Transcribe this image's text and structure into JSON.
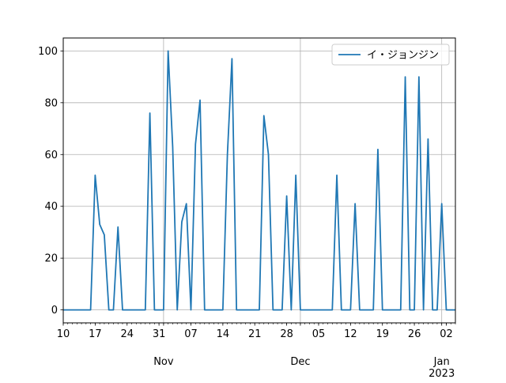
{
  "chart_data": {
    "type": "line",
    "x_start": "2022-10-10",
    "x_end": "2023-01-04",
    "ylim": [
      -5,
      105
    ],
    "y_ticks": [
      0,
      20,
      40,
      60,
      80,
      100
    ],
    "grid": true,
    "legend_position": "top-right",
    "x_ticks": [
      {
        "date": "2022-10-10",
        "label": "10"
      },
      {
        "date": "2022-10-17",
        "label": "17"
      },
      {
        "date": "2022-10-24",
        "label": "24"
      },
      {
        "date": "2022-10-31",
        "label": "31"
      },
      {
        "date": "2022-11-07",
        "label": "07"
      },
      {
        "date": "2022-11-14",
        "label": "14"
      },
      {
        "date": "2022-11-21",
        "label": "21"
      },
      {
        "date": "2022-11-28",
        "label": "28"
      },
      {
        "date": "2022-12-05",
        "label": "05"
      },
      {
        "date": "2022-12-12",
        "label": "12"
      },
      {
        "date": "2022-12-19",
        "label": "19"
      },
      {
        "date": "2022-12-26",
        "label": "26"
      },
      {
        "date": "2023-01-02",
        "label": "02"
      }
    ],
    "month_labels": [
      {
        "date": "2022-11-01",
        "label": "Nov"
      },
      {
        "date": "2022-12-01",
        "label": "Dec"
      },
      {
        "date": "2023-01-01",
        "label": "Jan",
        "sublabel": "2023"
      }
    ],
    "series": [
      {
        "name": "イ・ジョンジン",
        "color": "#1f77b4",
        "points": [
          [
            "2022-10-10",
            0
          ],
          [
            "2022-10-16",
            0
          ],
          [
            "2022-10-17",
            52
          ],
          [
            "2022-10-18",
            33
          ],
          [
            "2022-10-19",
            29
          ],
          [
            "2022-10-20",
            0
          ],
          [
            "2022-10-21",
            0
          ],
          [
            "2022-10-22",
            32
          ],
          [
            "2022-10-23",
            0
          ],
          [
            "2022-10-28",
            0
          ],
          [
            "2022-10-29",
            76
          ],
          [
            "2022-10-30",
            0
          ],
          [
            "2022-10-31",
            0
          ],
          [
            "2022-11-01",
            0
          ],
          [
            "2022-11-02",
            100
          ],
          [
            "2022-11-03",
            63
          ],
          [
            "2022-11-04",
            0
          ],
          [
            "2022-11-05",
            34
          ],
          [
            "2022-11-06",
            41
          ],
          [
            "2022-11-07",
            0
          ],
          [
            "2022-11-08",
            64
          ],
          [
            "2022-11-09",
            81
          ],
          [
            "2022-11-10",
            0
          ],
          [
            "2022-11-14",
            0
          ],
          [
            "2022-11-15",
            60
          ],
          [
            "2022-11-16",
            97
          ],
          [
            "2022-11-17",
            0
          ],
          [
            "2022-11-22",
            0
          ],
          [
            "2022-11-23",
            75
          ],
          [
            "2022-11-24",
            60
          ],
          [
            "2022-11-25",
            0
          ],
          [
            "2022-11-27",
            0
          ],
          [
            "2022-11-28",
            44
          ],
          [
            "2022-11-29",
            0
          ],
          [
            "2022-11-30",
            52
          ],
          [
            "2022-12-01",
            0
          ],
          [
            "2022-12-08",
            0
          ],
          [
            "2022-12-09",
            52
          ],
          [
            "2022-12-10",
            0
          ],
          [
            "2022-12-12",
            0
          ],
          [
            "2022-12-13",
            41
          ],
          [
            "2022-12-14",
            0
          ],
          [
            "2022-12-17",
            0
          ],
          [
            "2022-12-18",
            62
          ],
          [
            "2022-12-19",
            0
          ],
          [
            "2022-12-23",
            0
          ],
          [
            "2022-12-24",
            90
          ],
          [
            "2022-12-25",
            0
          ],
          [
            "2022-12-26",
            0
          ],
          [
            "2022-12-27",
            90
          ],
          [
            "2022-12-28",
            0
          ],
          [
            "2022-12-29",
            66
          ],
          [
            "2022-12-30",
            0
          ],
          [
            "2022-12-31",
            0
          ],
          [
            "2023-01-01",
            41
          ],
          [
            "2023-01-02",
            0
          ],
          [
            "2023-01-04",
            0
          ]
        ]
      }
    ]
  }
}
